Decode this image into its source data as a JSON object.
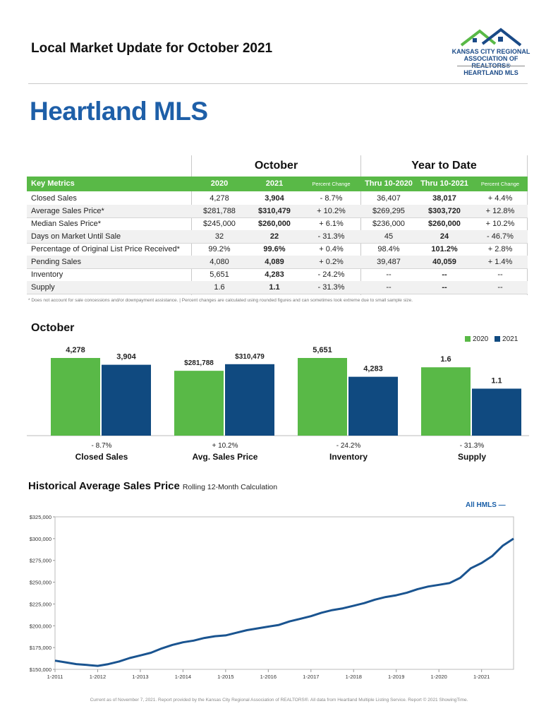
{
  "header": {
    "title": "Local Market Update for October 2021",
    "logo_line1": "KANSAS CITY REGIONAL",
    "logo_line2": "ASSOCIATION OF REALTORS®",
    "logo_line3": "HEARTLAND MLS"
  },
  "main_title": "Heartland MLS",
  "table": {
    "group_october": "October",
    "group_ytd": "Year to Date",
    "headers": [
      "Key Metrics",
      "2020",
      "2021",
      "Percent Change",
      "Thru 10-2020",
      "Thru 10-2021",
      "Percent Change"
    ],
    "rows": [
      {
        "label": "Closed Sales",
        "c1": "4,278",
        "c2": "3,904",
        "c3": "- 8.7%",
        "c4": "36,407",
        "c5": "38,017",
        "c6": "+ 4.4%"
      },
      {
        "label": "Average Sales Price*",
        "c1": "$281,788",
        "c2": "$310,479",
        "c3": "+ 10.2%",
        "c4": "$269,295",
        "c5": "$303,720",
        "c6": "+ 12.8%"
      },
      {
        "label": "Median Sales Price*",
        "c1": "$245,000",
        "c2": "$260,000",
        "c3": "+ 6.1%",
        "c4": "$236,000",
        "c5": "$260,000",
        "c6": "+ 10.2%"
      },
      {
        "label": "Days on Market Until Sale",
        "c1": "32",
        "c2": "22",
        "c3": "- 31.3%",
        "c4": "45",
        "c5": "24",
        "c6": "- 46.7%"
      },
      {
        "label": "Percentage of Original List Price Received*",
        "c1": "99.2%",
        "c2": "99.6%",
        "c3": "+ 0.4%",
        "c4": "98.4%",
        "c5": "101.2%",
        "c6": "+ 2.8%"
      },
      {
        "label": "Pending Sales",
        "c1": "4,080",
        "c2": "4,089",
        "c3": "+ 0.2%",
        "c4": "39,487",
        "c5": "40,059",
        "c6": "+ 1.4%"
      },
      {
        "label": "Inventory",
        "c1": "5,651",
        "c2": "4,283",
        "c3": "- 24.2%",
        "c4": "--",
        "c5": "--",
        "c6": "--"
      },
      {
        "label": "Supply",
        "c1": "1.6",
        "c2": "1.1",
        "c3": "- 31.3%",
        "c4": "--",
        "c5": "--",
        "c6": "--"
      }
    ],
    "footnote": "* Does not account for sale concessions and/or downpayment assistance.  |  Percent changes are calculated using rounded figures and can sometimes look extreme due to small sample size."
  },
  "colors": {
    "green": "#59b947",
    "navy": "#104a80",
    "title_blue": "#1e5fa8"
  },
  "chart_data": [
    {
      "type": "bar",
      "title": "October",
      "legend": [
        "2020",
        "2021"
      ],
      "legend_placement": "top-right",
      "groups": [
        {
          "name": "Closed Sales",
          "change": "- 8.7%",
          "v2020": 4278,
          "v2021": 3904,
          "l2020": "4,278",
          "l2021": "3,904"
        },
        {
          "name": "Avg. Sales Price",
          "change": "+ 10.2%",
          "v2020": 281788,
          "v2021": 310479,
          "l2020": "$281,788",
          "l2021": "$310,479"
        },
        {
          "name": "Inventory",
          "change": "- 24.2%",
          "v2020": 5651,
          "v2021": 4283,
          "l2020": "5,651",
          "l2021": "4,283"
        },
        {
          "name": "Supply",
          "change": "- 31.3%",
          "v2020": 1.6,
          "v2021": 1.1,
          "l2020": "1.6",
          "l2021": "1.1"
        }
      ]
    },
    {
      "type": "line",
      "title": "Historical Average Sales Price",
      "subtitle": "Rolling 12-Month Calculation",
      "legend": "All HMLS",
      "legend_placement": "top-right",
      "ylim": [
        150000,
        325000
      ],
      "y_ticks": [
        150000,
        175000,
        200000,
        225000,
        250000,
        275000,
        300000,
        325000
      ],
      "y_tick_labels": [
        "$150,000",
        "$175,000",
        "$200,000",
        "$225,000",
        "$250,000",
        "$275,000",
        "$300,000",
        "$325,000"
      ],
      "x_tick_labels": [
        "1-2011",
        "1-2012",
        "1-2013",
        "1-2014",
        "1-2015",
        "1-2016",
        "1-2017",
        "1-2018",
        "1-2019",
        "1-2020",
        "1-2021"
      ],
      "xlim": [
        2011.0,
        2021.75
      ],
      "series": [
        {
          "name": "All HMLS",
          "points": [
            [
              2011.0,
              160000
            ],
            [
              2011.25,
              158000
            ],
            [
              2011.5,
              156000
            ],
            [
              2011.75,
              155000
            ],
            [
              2012.0,
              154000
            ],
            [
              2012.25,
              156000
            ],
            [
              2012.5,
              159000
            ],
            [
              2012.75,
              163000
            ],
            [
              2013.0,
              166000
            ],
            [
              2013.25,
              169000
            ],
            [
              2013.5,
              174000
            ],
            [
              2013.75,
              178000
            ],
            [
              2014.0,
              181000
            ],
            [
              2014.25,
              183000
            ],
            [
              2014.5,
              186000
            ],
            [
              2014.75,
              188000
            ],
            [
              2015.0,
              189000
            ],
            [
              2015.25,
              192000
            ],
            [
              2015.5,
              195000
            ],
            [
              2015.75,
              197000
            ],
            [
              2016.0,
              199000
            ],
            [
              2016.25,
              201000
            ],
            [
              2016.5,
              205000
            ],
            [
              2016.75,
              208000
            ],
            [
              2017.0,
              211000
            ],
            [
              2017.25,
              215000
            ],
            [
              2017.5,
              218000
            ],
            [
              2017.75,
              220000
            ],
            [
              2018.0,
              223000
            ],
            [
              2018.25,
              226000
            ],
            [
              2018.5,
              230000
            ],
            [
              2018.75,
              233000
            ],
            [
              2019.0,
              235000
            ],
            [
              2019.25,
              238000
            ],
            [
              2019.5,
              242000
            ],
            [
              2019.75,
              245000
            ],
            [
              2020.0,
              247000
            ],
            [
              2020.25,
              249000
            ],
            [
              2020.5,
              255000
            ],
            [
              2020.75,
              266000
            ],
            [
              2021.0,
              272000
            ],
            [
              2021.25,
              280000
            ],
            [
              2021.5,
              292000
            ],
            [
              2021.75,
              300000
            ]
          ]
        }
      ]
    }
  ],
  "credits": "Current as of November 7, 2021. Report provided by the Kansas City Regional Association of REALTORS®. All data from Heartland Multiple Listing Service. Report © 2021 ShowingTime."
}
